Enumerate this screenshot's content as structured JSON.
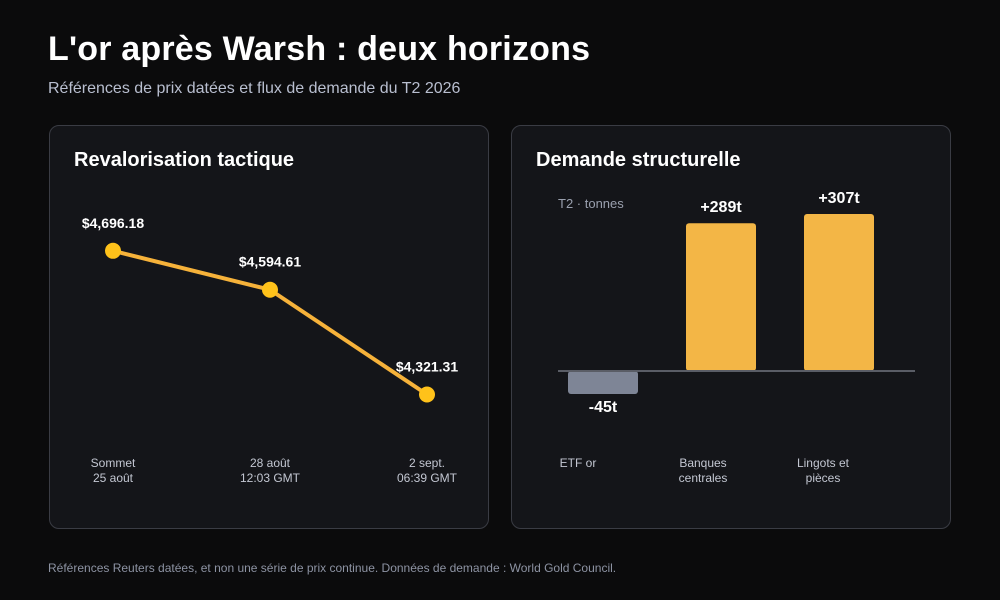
{
  "header": {
    "title": "L'or après Warsh : deux horizons",
    "subtitle": "Références de prix datées et flux de demande du T2 2026"
  },
  "footnote": "Références Reuters datées, et non une série de prix continue. Données de demande : World Gold Council.",
  "colors": {
    "line": "#f6b23a",
    "marker": "#ffc21a",
    "bar_positive": "#f3b646",
    "bar_negative": "#7e8596",
    "baseline": "#5a5d66"
  },
  "chart_data": [
    {
      "type": "line",
      "title": "Revalorisation tactique",
      "categories": [
        [
          "Sommet",
          "25 août"
        ],
        [
          "28 août",
          "12:03 GMT"
        ],
        [
          "2 sept.",
          "06:39 GMT"
        ]
      ],
      "values": [
        4696.18,
        4594.61,
        4321.31
      ],
      "labels": [
        "$4,696.18",
        "$4,594.61",
        "$4,321.31"
      ],
      "ylim": [
        4200,
        4800
      ],
      "grid": false,
      "legend": "none"
    },
    {
      "type": "bar",
      "title": "Demande structurelle",
      "unit_label": "T2 · tonnes",
      "categories": [
        [
          "ETF or"
        ],
        [
          "Banques",
          "centrales"
        ],
        [
          "Lingots et",
          "pièces"
        ]
      ],
      "values": [
        -45,
        289,
        307
      ],
      "labels": [
        "-45t",
        "+289t",
        "+307t"
      ],
      "ylim": [
        -100,
        350
      ],
      "grid": false,
      "legend": "none"
    }
  ]
}
